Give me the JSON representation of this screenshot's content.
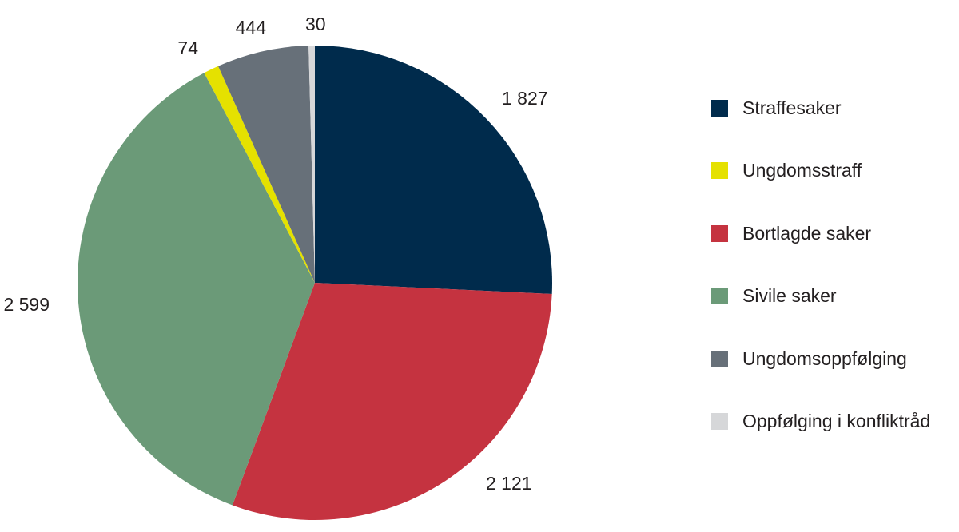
{
  "chart_data": {
    "type": "pie",
    "start_angle_deg": 0,
    "direction": "clockwise",
    "legend_position": "right",
    "slices": [
      {
        "label": "Straffesaker",
        "value": 1827,
        "value_label": "1 827",
        "color": "#002b4c"
      },
      {
        "label": "Bortlagde saker",
        "value": 2121,
        "value_label": "2 121",
        "color": "#c53340"
      },
      {
        "label": "Sivile saker",
        "value": 2599,
        "value_label": "2 599",
        "color": "#6b9a78"
      },
      {
        "label": "Ungdomsstraff",
        "value": 74,
        "value_label": "74",
        "color": "#e5e100"
      },
      {
        "label": "Ungdomsoppfølging",
        "value": 444,
        "value_label": "444",
        "color": "#677079"
      },
      {
        "label": "Oppfølging i konfliktråd",
        "value": 30,
        "value_label": "30",
        "color": "#d6d7d9"
      }
    ],
    "legend": [
      {
        "label": "Straffesaker",
        "color": "#002b4c"
      },
      {
        "label": "Ungdomsstraff",
        "color": "#e5e100"
      },
      {
        "label": "Bortlagde saker",
        "color": "#c53340"
      },
      {
        "label": "Sivile saker",
        "color": "#6b9a78"
      },
      {
        "label": "Ungdomsoppfølging",
        "color": "#677079"
      },
      {
        "label": "Oppfølging i konfliktråd",
        "color": "#d6d7d9"
      }
    ]
  }
}
